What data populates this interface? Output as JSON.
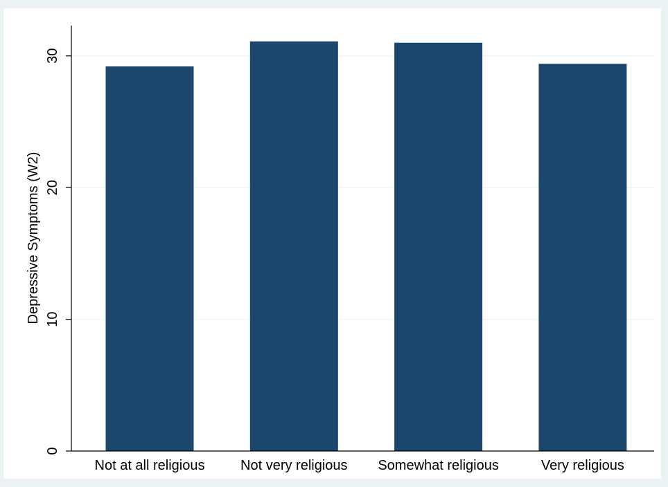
{
  "chart_data": {
    "type": "bar",
    "categories": [
      "Not at all religious",
      "Not very religious",
      "Somewhat religious",
      "Very religious"
    ],
    "series": [
      {
        "values": [
          29.2,
          31.1,
          31.0,
          29.4
        ]
      }
    ],
    "title": "",
    "xlabel": "",
    "ylabel": "Depressive Symptoms (W2)",
    "ylim": [
      0,
      32.3
    ],
    "yticks": [
      0,
      10,
      20,
      30
    ],
    "grid": true,
    "legend": "none",
    "colors": {
      "bar": "#1c466c",
      "outer_background": "#eaf2f3",
      "plot_background": "#ffffff",
      "gridline": "#eaf2f3",
      "axis": "#000000"
    }
  }
}
